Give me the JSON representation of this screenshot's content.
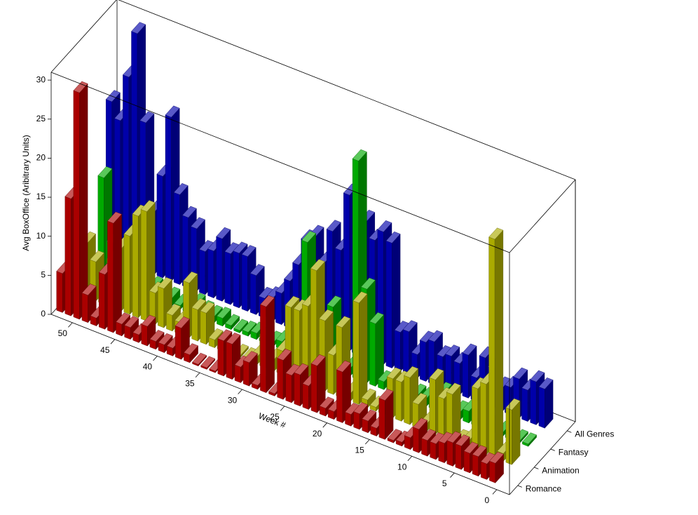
{
  "chart_data": {
    "type": "bar3d",
    "y_label": "Avg BoxOffice (Aribitrary Units)",
    "x_label": "Week #",
    "x": [
      52,
      51,
      50,
      49,
      48,
      47,
      46,
      45,
      44,
      43,
      42,
      41,
      40,
      39,
      38,
      37,
      36,
      35,
      34,
      33,
      32,
      31,
      30,
      29,
      28,
      27,
      26,
      25,
      24,
      23,
      22,
      21,
      20,
      19,
      18,
      17,
      16,
      15,
      14,
      13,
      12,
      11,
      10,
      9,
      8,
      7,
      6,
      5,
      4,
      3,
      2,
      1
    ],
    "xlim": [
      -1.5,
      52.5
    ],
    "xticks": [
      0,
      5,
      10,
      15,
      20,
      25,
      30,
      35,
      40,
      45,
      50
    ],
    "zlim": [
      0,
      31
    ],
    "zticks": [
      0,
      5,
      10,
      15,
      20,
      25,
      30
    ],
    "series": [
      {
        "name": "Romance",
        "color": "#aa0000",
        "values": [
          5,
          15,
          29,
          3.5,
          1,
          7,
          14,
          1.5,
          1.5,
          1,
          2.5,
          1,
          1,
          1,
          4,
          1,
          0.2,
          0.2,
          0.2,
          4.5,
          4.5,
          2,
          3,
          0.5,
          11,
          0.3,
          5,
          3.5,
          4,
          3,
          6,
          1,
          1,
          6.5,
          1.5,
          2,
          1.5,
          1,
          5,
          0.3,
          0.5,
          1.5,
          3,
          2,
          2,
          2.5,
          3,
          3,
          2.5,
          2.5,
          2,
          2.5
        ]
      },
      {
        "name": "Animation",
        "color": "#aaaa00",
        "values": [
          9,
          7,
          5,
          3,
          6,
          8,
          10,
          13,
          14,
          4,
          5,
          2,
          1.5,
          7,
          4,
          4,
          1,
          1,
          0.3,
          0.3,
          0.3,
          1,
          4,
          1.5,
          3,
          9,
          9,
          10,
          15,
          9,
          5,
          9,
          1,
          13,
          1,
          0.5,
          0.5,
          5,
          5,
          6,
          3,
          1,
          7,
          5,
          6,
          0.5,
          1,
          8,
          9,
          28,
          1,
          7
        ]
      },
      {
        "name": "Fantasy",
        "color": "#00aa00",
        "values": [
          1,
          13,
          5,
          2,
          1,
          1,
          3,
          1.5,
          1,
          1,
          0.5,
          1,
          1.5,
          1,
          0.8,
          1,
          0.5,
          0.3,
          0.5,
          0.8,
          0.3,
          0.5,
          1,
          1,
          0.5,
          15,
          1,
          1.5,
          8,
          2,
          1,
          28,
          12,
          8,
          1,
          1.5,
          0.5,
          1,
          1,
          1,
          1.5,
          2.5,
          1,
          1,
          1.5,
          1,
          0.8,
          1,
          0.5,
          0.5,
          0.3,
          0.3
        ]
      },
      {
        "name": "All Genres",
        "color": "#0000aa",
        "values": [
          20,
          18,
          24,
          30,
          19,
          8,
          13,
          21,
          11.5,
          9,
          8,
          5.5,
          6,
          8,
          6.5,
          7,
          7,
          5,
          2.5,
          3,
          4,
          6,
          8.5,
          12,
          13,
          10,
          14.5,
          12.5,
          20,
          15,
          17.5,
          15.5,
          17,
          16,
          5,
          5.5,
          3,
          5,
          5.5,
          4,
          4.5,
          4,
          5.5,
          3,
          6,
          5,
          3,
          3.5,
          5,
          4,
          5.5,
          5
        ]
      }
    ]
  }
}
